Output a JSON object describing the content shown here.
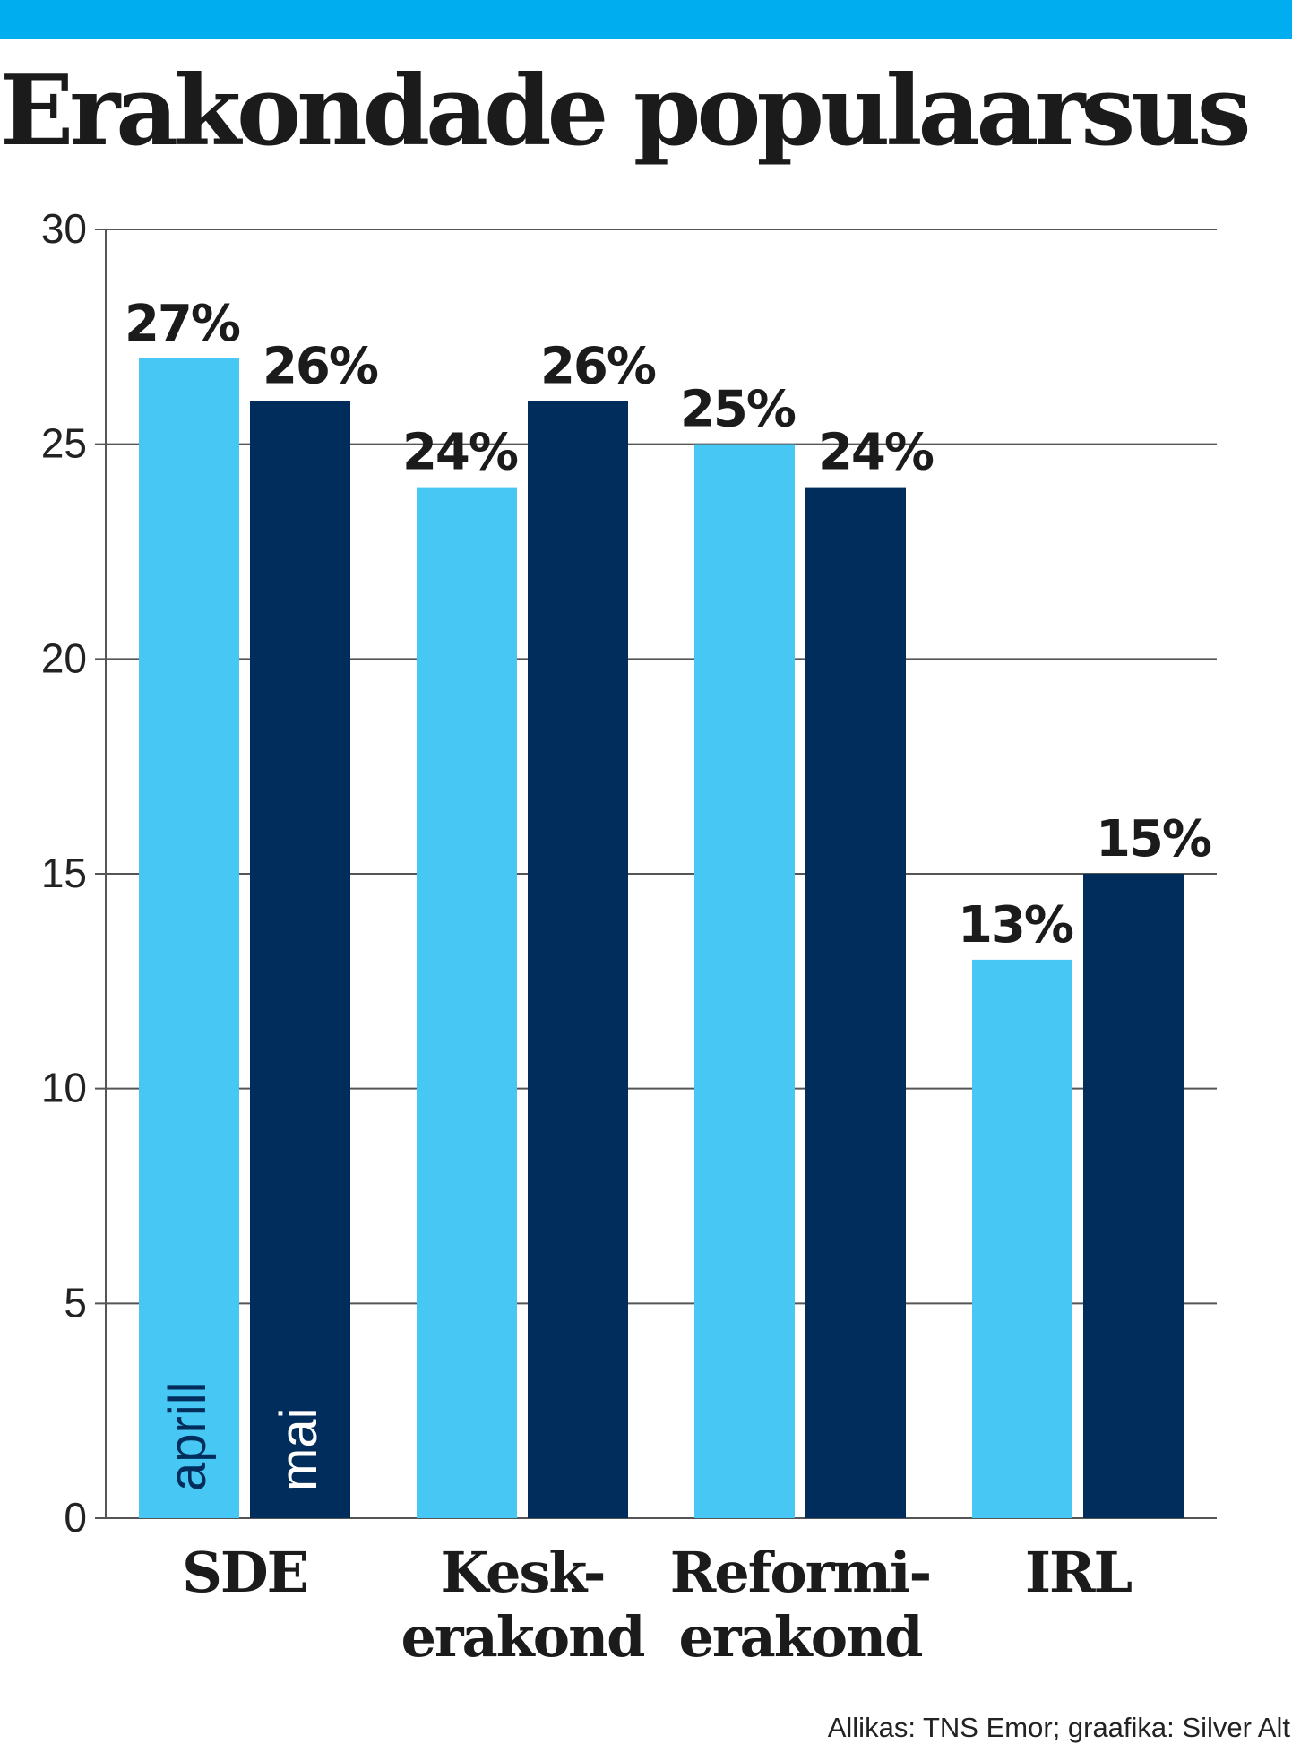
{
  "header": {
    "title": "Erakondade populaarsus"
  },
  "source": "Allikas: TNS Emor; graafika: Silver Alt",
  "colors": {
    "top_bar": "#00aeef",
    "april": "#47c8f4",
    "may": "#002d5b",
    "text": "#1b1b1b",
    "grid": "#555555"
  },
  "chart_data": {
    "type": "bar",
    "categories": [
      [
        "SDE"
      ],
      [
        "Kesk-",
        "erakond"
      ],
      [
        "Reformi-",
        "erakond"
      ],
      [
        "IRL"
      ]
    ],
    "series": [
      {
        "name": "aprill",
        "values": [
          27,
          24,
          25,
          13
        ],
        "labels": [
          "27%",
          "24%",
          "25%",
          "13%"
        ]
      },
      {
        "name": "mai",
        "values": [
          26,
          26,
          24,
          15
        ],
        "labels": [
          "26%",
          "26%",
          "24%",
          "15%"
        ]
      }
    ],
    "ylim": [
      0,
      30
    ],
    "yticks": [
      "0",
      "5",
      "10",
      "15",
      "20",
      "25",
      "30"
    ],
    "grid": true,
    "legend": "inside first bars, vertical text"
  }
}
